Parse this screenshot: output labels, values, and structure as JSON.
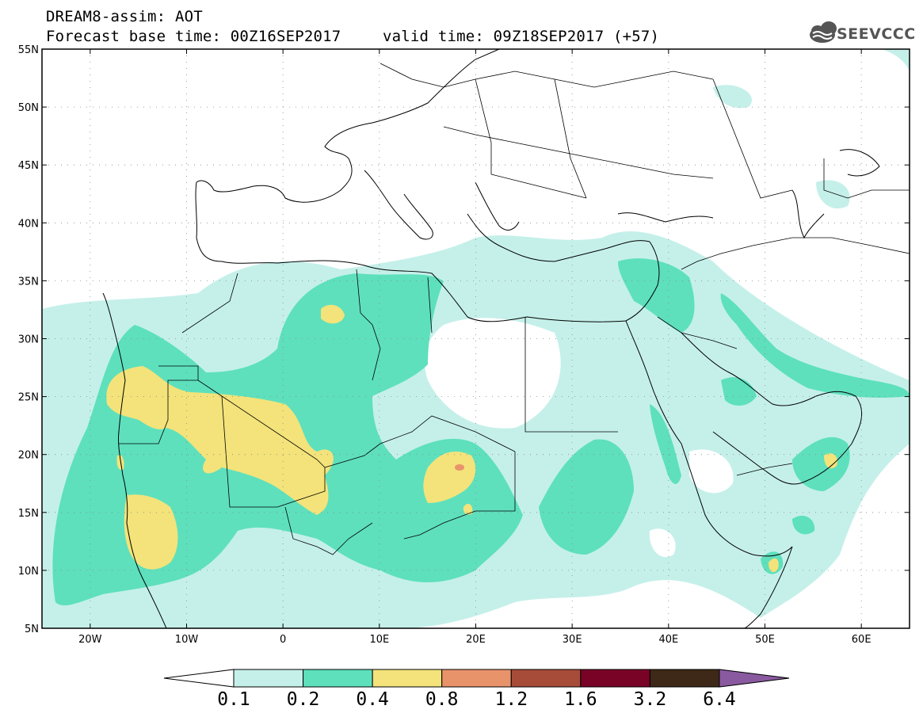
{
  "header": {
    "line1": "DREAM8-assim: AOT",
    "line2_left": "Forecast base time: 00Z16SEP2017",
    "line2_right": "valid time: 09Z18SEP2017 (+57)"
  },
  "logo": {
    "text": "SEEVCCC",
    "icon": "cloud-icon"
  },
  "map": {
    "lon_range": [
      -25,
      65
    ],
    "lat_range": [
      5,
      55
    ],
    "lon_ticks": [
      {
        "value": -20,
        "label": "20W"
      },
      {
        "value": -10,
        "label": "10W"
      },
      {
        "value": 0,
        "label": "0"
      },
      {
        "value": 10,
        "label": "10E"
      },
      {
        "value": 20,
        "label": "20E"
      },
      {
        "value": 30,
        "label": "30E"
      },
      {
        "value": 40,
        "label": "40E"
      },
      {
        "value": 50,
        "label": "50E"
      },
      {
        "value": 60,
        "label": "60E"
      }
    ],
    "lat_ticks": [
      {
        "value": 55,
        "label": "55N"
      },
      {
        "value": 50,
        "label": "50N"
      },
      {
        "value": 45,
        "label": "45N"
      },
      {
        "value": 40,
        "label": "40N"
      },
      {
        "value": 35,
        "label": "35N"
      },
      {
        "value": 30,
        "label": "30N"
      },
      {
        "value": 25,
        "label": "25N"
      },
      {
        "value": 20,
        "label": "20N"
      },
      {
        "value": 15,
        "label": "15N"
      },
      {
        "value": 10,
        "label": "10N"
      },
      {
        "value": 5,
        "label": "5N"
      }
    ],
    "grid": "dotted"
  },
  "colorbar": {
    "labels": [
      "0.1",
      "0.2",
      "0.4",
      "0.8",
      "1.2",
      "1.6",
      "3.2",
      "6.4"
    ],
    "colors": [
      "#c5f0ea",
      "#5ee0bd",
      "#f3e37a",
      "#e9936b",
      "#a74c39",
      "#780326",
      "#3e2817"
    ],
    "under_color": "#ffffff",
    "over_color": "#8a5aa0"
  },
  "levels_colors": {
    "light": "#c5f0ea",
    "mid": "#5ee0bd",
    "high": "#f3e37a",
    "peak": "#e9936b"
  }
}
